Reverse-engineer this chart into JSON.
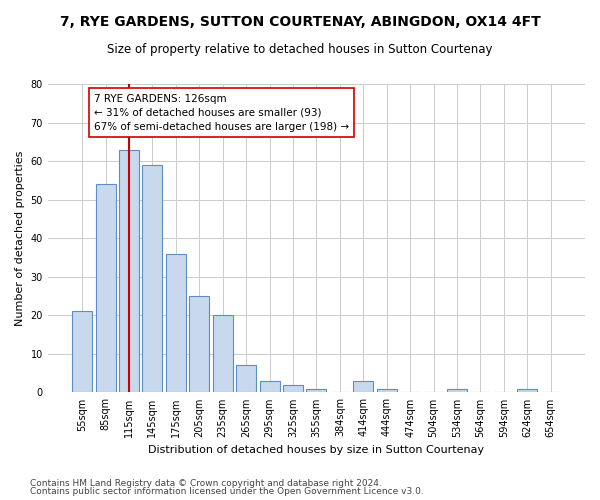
{
  "title": "7, RYE GARDENS, SUTTON COURTENAY, ABINGDON, OX14 4FT",
  "subtitle": "Size of property relative to detached houses in Sutton Courtenay",
  "xlabel": "Distribution of detached houses by size in Sutton Courtenay",
  "ylabel": "Number of detached properties",
  "categories": [
    "55sqm",
    "85sqm",
    "115sqm",
    "145sqm",
    "175sqm",
    "205sqm",
    "235sqm",
    "265sqm",
    "295sqm",
    "325sqm",
    "355sqm",
    "384sqm",
    "414sqm",
    "444sqm",
    "474sqm",
    "504sqm",
    "534sqm",
    "564sqm",
    "594sqm",
    "624sqm",
    "654sqm"
  ],
  "values": [
    21,
    54,
    63,
    59,
    36,
    25,
    20,
    7,
    3,
    2,
    1,
    0,
    3,
    1,
    0,
    0,
    1,
    0,
    0,
    1,
    0
  ],
  "bar_color": "#c9d9ed",
  "bar_edge_color": "#5b8ec7",
  "vline_x_index": 2,
  "vline_color": "#cc0000",
  "annotation_text": "7 RYE GARDENS: 126sqm\n← 31% of detached houses are smaller (93)\n67% of semi-detached houses are larger (198) →",
  "annotation_box_color": "#ffffff",
  "annotation_box_edge_color": "#cc0000",
  "ylim": [
    0,
    80
  ],
  "yticks": [
    0,
    10,
    20,
    30,
    40,
    50,
    60,
    70,
    80
  ],
  "grid_color": "#cccccc",
  "background_color": "#ffffff",
  "footnote1": "Contains HM Land Registry data © Crown copyright and database right 2024.",
  "footnote2": "Contains public sector information licensed under the Open Government Licence v3.0.",
  "title_fontsize": 10,
  "subtitle_fontsize": 8.5,
  "xlabel_fontsize": 8,
  "ylabel_fontsize": 8,
  "tick_fontsize": 7,
  "annotation_fontsize": 7.5,
  "footnote_fontsize": 6.5
}
